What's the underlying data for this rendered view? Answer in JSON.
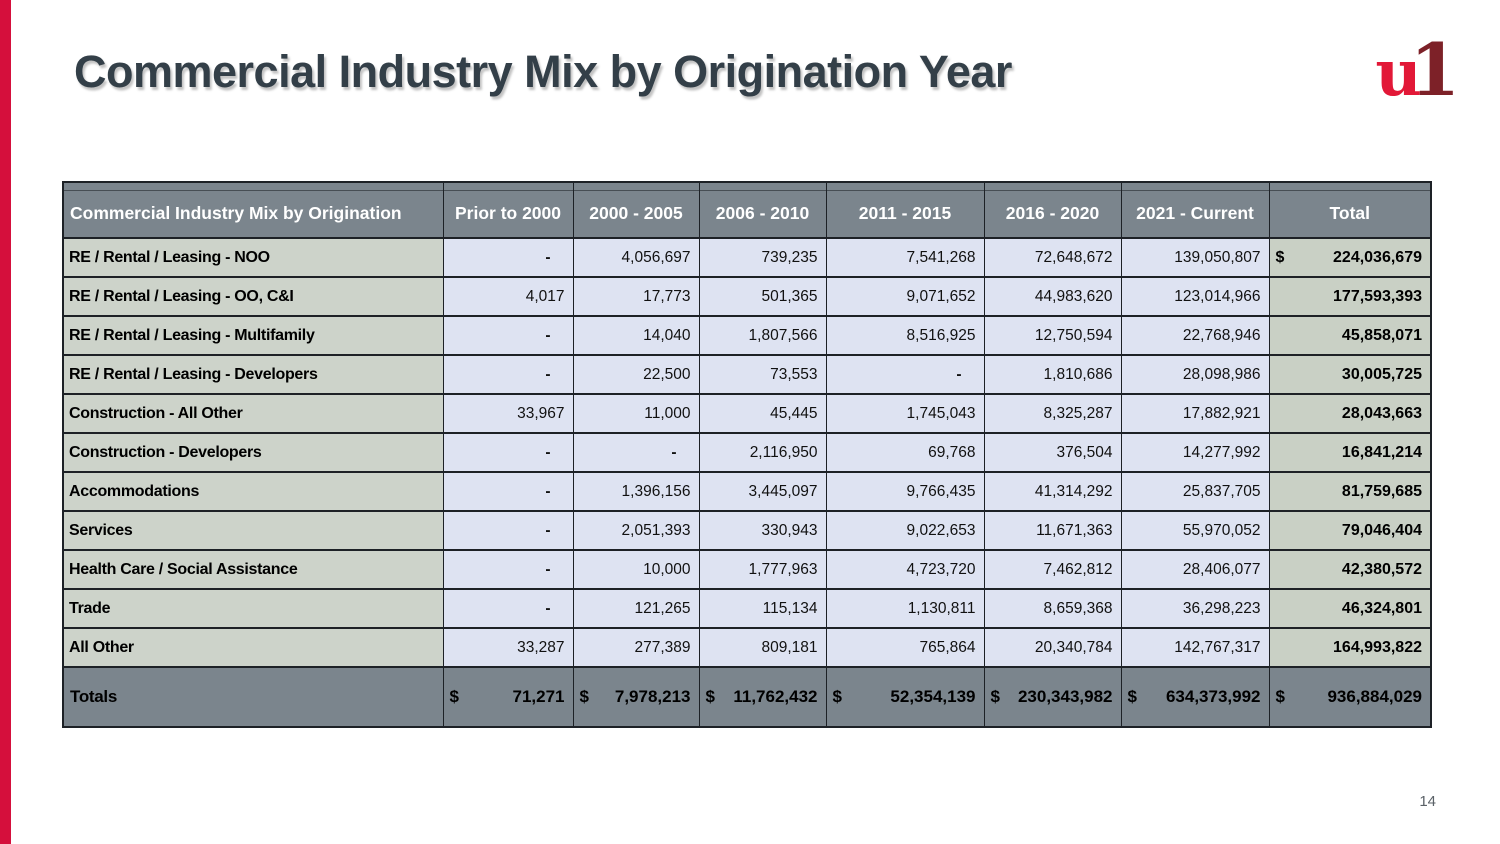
{
  "page": {
    "title": "Commercial Industry Mix by Origination Year",
    "page_number": "14"
  },
  "brand": {
    "logo_u": "u",
    "logo_one": "1",
    "logo_u_color": "#E21837",
    "logo_one_color": "#7D2128",
    "accent_stripe_color": "#D50F3C"
  },
  "table": {
    "columns": [
      "Commercial Industry Mix by Origination",
      "Prior to 2000",
      "2000 - 2005",
      "2006 - 2010",
      "2011 - 2015",
      "2016 - 2020",
      "2021 - Current",
      "Total"
    ],
    "rows": [
      {
        "label": "RE / Rental / Leasing - NOO",
        "values": [
          "-",
          "4,056,697",
          "739,235",
          "7,541,268",
          "72,648,672",
          "139,050,807"
        ],
        "total_currency": "$",
        "total": "224,036,679"
      },
      {
        "label": "RE / Rental / Leasing - OO, C&I",
        "values": [
          "4,017",
          "17,773",
          "501,365",
          "9,071,652",
          "44,983,620",
          "123,014,966"
        ],
        "total_currency": "",
        "total": "177,593,393"
      },
      {
        "label": "RE / Rental / Leasing - Multifamily",
        "values": [
          "-",
          "14,040",
          "1,807,566",
          "8,516,925",
          "12,750,594",
          "22,768,946"
        ],
        "total_currency": "",
        "total": "45,858,071"
      },
      {
        "label": "RE / Rental / Leasing - Developers",
        "values": [
          "-",
          "22,500",
          "73,553",
          "-",
          "1,810,686",
          "28,098,986"
        ],
        "total_currency": "",
        "total": "30,005,725"
      },
      {
        "label": "Construction - All Other",
        "values": [
          "33,967",
          "11,000",
          "45,445",
          "1,745,043",
          "8,325,287",
          "17,882,921"
        ],
        "total_currency": "",
        "total": "28,043,663"
      },
      {
        "label": "Construction - Developers",
        "values": [
          "-",
          "-",
          "2,116,950",
          "69,768",
          "376,504",
          "14,277,992"
        ],
        "total_currency": "",
        "total": "16,841,214"
      },
      {
        "label": "Accommodations",
        "values": [
          "-",
          "1,396,156",
          "3,445,097",
          "9,766,435",
          "41,314,292",
          "25,837,705"
        ],
        "total_currency": "",
        "total": "81,759,685"
      },
      {
        "label": "Services",
        "values": [
          "-",
          "2,051,393",
          "330,943",
          "9,022,653",
          "11,671,363",
          "55,970,052"
        ],
        "total_currency": "",
        "total": "79,046,404"
      },
      {
        "label": "Health Care / Social Assistance",
        "values": [
          "-",
          "10,000",
          "1,777,963",
          "4,723,720",
          "7,462,812",
          "28,406,077"
        ],
        "total_currency": "",
        "total": "42,380,572"
      },
      {
        "label": "Trade",
        "values": [
          "-",
          "121,265",
          "115,134",
          "1,130,811",
          "8,659,368",
          "36,298,223"
        ],
        "total_currency": "",
        "total": "46,324,801"
      },
      {
        "label": "All Other",
        "values": [
          "33,287",
          "277,389",
          "809,181",
          "765,864",
          "20,340,784",
          "142,767,317"
        ],
        "total_currency": "",
        "total": "164,993,822"
      }
    ],
    "totals_row": {
      "label": "Totals",
      "currency": "$",
      "values": [
        "71,271",
        "7,978,213",
        "11,762,432",
        "52,354,139",
        "230,343,982",
        "634,373,992"
      ],
      "total": "936,884,029"
    }
  }
}
